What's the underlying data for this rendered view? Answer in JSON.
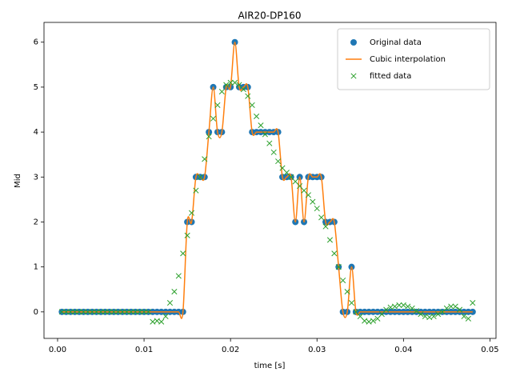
{
  "chart_data": {
    "type": "line",
    "title": "AIR20-DP160",
    "x_label": "time [s]",
    "y_label": "Mid",
    "xlim": [
      -0.00157,
      0.0507
    ],
    "ylim": [
      -0.59,
      6.44
    ],
    "xticks": [
      {
        "value": 0,
        "label": "0.00"
      },
      0.01,
      0.02,
      0.03,
      0.04,
      0.05
    ],
    "yticks": [
      0,
      1,
      2,
      3,
      4,
      5,
      6
    ],
    "legend": "upper right",
    "x": [
      0.0005,
      0.001,
      0.0015,
      0.002,
      0.0025,
      0.003,
      0.0035,
      0.004,
      0.0045,
      0.005,
      0.0055,
      0.006,
      0.0065,
      0.007,
      0.0075,
      0.008,
      0.0085,
      0.009,
      0.0095,
      0.01,
      0.0105,
      0.011,
      0.0115,
      0.012,
      0.0125,
      0.013,
      0.0135,
      0.014,
      0.0145,
      0.015,
      0.0155,
      0.016,
      0.0165,
      0.017,
      0.0175,
      0.018,
      0.0185,
      0.019,
      0.0195,
      0.02,
      0.0205,
      0.021,
      0.0215,
      0.022,
      0.0225,
      0.023,
      0.0235,
      0.024,
      0.0245,
      0.025,
      0.0255,
      0.026,
      0.0265,
      0.027,
      0.0275,
      0.028,
      0.0285,
      0.029,
      0.0295,
      0.03,
      0.0305,
      0.031,
      0.0315,
      0.032,
      0.0325,
      0.033,
      0.0335,
      0.034,
      0.0345,
      0.035,
      0.0355,
      0.036,
      0.0365,
      0.037,
      0.0375,
      0.038,
      0.0385,
      0.039,
      0.0395,
      0.04,
      0.0405,
      0.041,
      0.0415,
      0.042,
      0.0425,
      0.043,
      0.0435,
      0.044,
      0.0445,
      0.045,
      0.0455,
      0.046,
      0.0465,
      0.047,
      0.0475,
      0.048
    ],
    "series": [
      {
        "name": "Original data",
        "color": "#1f77b4",
        "marker": "o",
        "values": [
          0,
          0,
          0,
          0,
          0,
          0,
          0,
          0,
          0,
          0,
          0,
          0,
          0,
          0,
          0,
          0,
          0,
          0,
          0,
          0,
          0,
          0,
          0,
          0,
          0,
          0,
          0,
          0,
          0,
          2,
          2,
          3,
          3,
          3,
          4,
          5,
          4,
          4,
          5,
          5,
          6,
          5,
          5,
          5,
          4,
          4,
          4,
          4,
          4,
          4,
          4,
          3,
          3,
          3,
          2,
          3,
          2,
          3,
          3,
          3,
          3,
          2,
          2,
          2,
          1,
          0,
          0,
          1,
          0,
          0,
          0,
          0,
          0,
          0,
          0,
          0,
          0,
          0,
          0,
          0,
          0,
          0,
          0,
          0,
          0,
          0,
          0,
          0,
          0,
          0,
          0,
          0,
          0,
          0,
          0,
          0
        ]
      },
      {
        "name": "Cubic interpolation",
        "color": "#ff7f0e",
        "marker": "line",
        "values": [
          0,
          0,
          0,
          0,
          0,
          0,
          0,
          0,
          0,
          0,
          0,
          0,
          0,
          0,
          0,
          0,
          0,
          0,
          0,
          0,
          0,
          0,
          0,
          0,
          0,
          0,
          0,
          0,
          0,
          2,
          2,
          3,
          3,
          3,
          4,
          5,
          4,
          4,
          5,
          5,
          6,
          5,
          5,
          5,
          4,
          4,
          4,
          4,
          4,
          4,
          4,
          3,
          3,
          3,
          2,
          3,
          2,
          3,
          3,
          3,
          3,
          2,
          2,
          2,
          1,
          0,
          0,
          1,
          0,
          0,
          0,
          0,
          0,
          0,
          0,
          0,
          0,
          0,
          0,
          0,
          0,
          0,
          0,
          0,
          0,
          0,
          0,
          0,
          0,
          0,
          0,
          0,
          0,
          0,
          0,
          0
        ]
      },
      {
        "name": "fitted data",
        "color": "#2ca02c",
        "marker": "x",
        "values": [
          0,
          0,
          0,
          0,
          0,
          0,
          0,
          0,
          0,
          0,
          0,
          0,
          0,
          0,
          0,
          0,
          0,
          0,
          0,
          0,
          0,
          -0.22,
          -0.2,
          -0.22,
          -0.1,
          0.2,
          0.45,
          0.8,
          1.3,
          1.7,
          2.2,
          2.7,
          3.0,
          3.4,
          3.9,
          4.3,
          4.6,
          4.9,
          5.05,
          5.1,
          5.1,
          5.05,
          4.95,
          4.8,
          4.6,
          4.35,
          4.15,
          3.95,
          3.75,
          3.55,
          3.35,
          3.2,
          3.1,
          3.0,
          2.9,
          2.8,
          2.7,
          2.6,
          2.45,
          2.3,
          2.1,
          1.9,
          1.6,
          1.3,
          1.0,
          0.7,
          0.45,
          0.2,
          0.0,
          -0.1,
          -0.2,
          -0.22,
          -0.2,
          -0.15,
          -0.05,
          0.05,
          0.1,
          0.12,
          0.15,
          0.15,
          0.12,
          0.08,
          0.02,
          -0.05,
          -0.1,
          -0.12,
          -0.1,
          -0.05,
          0.0,
          0.08,
          0.12,
          0.12,
          0.05,
          -0.1,
          -0.15,
          0.2
        ]
      }
    ]
  }
}
